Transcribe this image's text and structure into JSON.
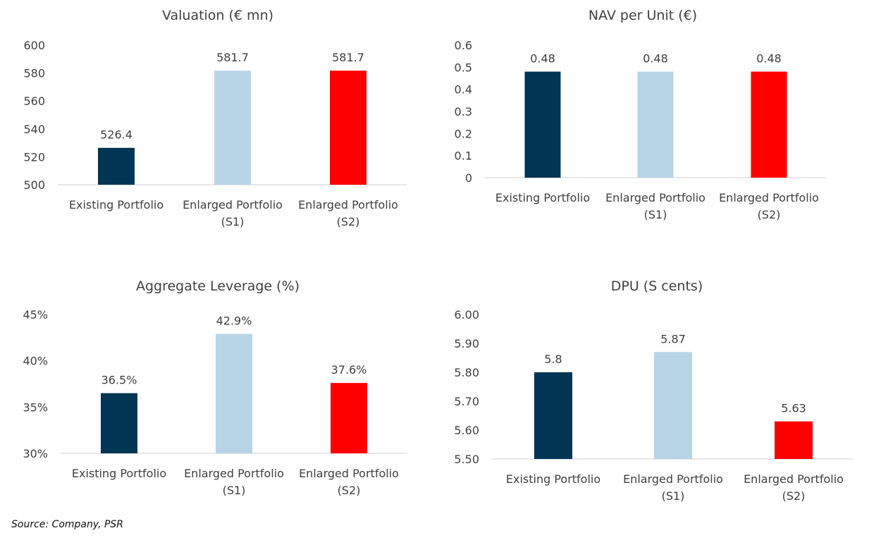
{
  "colors": {
    "existing": "#003553",
    "s1": "#b7d5e6",
    "s2": "#ff0000",
    "axis": "#d9d9d9",
    "text": "#404040"
  },
  "chart_data": [
    {
      "type": "bar",
      "title": "Valuation (€ mn)",
      "categories": [
        [
          "Existing Portfolio"
        ],
        [
          "Enlarged Portfolio",
          "(S1)"
        ],
        [
          "Enlarged Portfolio",
          "(S2)"
        ]
      ],
      "values": [
        526.4,
        581.7,
        581.7
      ],
      "value_labels": [
        "526.4",
        "581.7",
        "581.7"
      ],
      "ylim": [
        500,
        600
      ],
      "yticks": [
        "500",
        "520",
        "540",
        "560",
        "580",
        "600"
      ],
      "ytick_values": [
        500,
        520,
        540,
        560,
        580,
        600
      ],
      "grid": false
    },
    {
      "type": "bar",
      "title": "NAV per Unit (€)",
      "categories": [
        [
          "Existing Portfolio"
        ],
        [
          "Enlarged Portfolio",
          "(S1)"
        ],
        [
          "Enlarged Portfolio",
          "(S2)"
        ]
      ],
      "values": [
        0.48,
        0.48,
        0.48
      ],
      "value_labels": [
        "0.48",
        "0.48",
        "0.48"
      ],
      "ylim": [
        0,
        0.6
      ],
      "yticks": [
        "0",
        "0.1",
        "0.2",
        "0.3",
        "0.4",
        "0.5",
        "0.6"
      ],
      "ytick_values": [
        0,
        0.1,
        0.2,
        0.3,
        0.4,
        0.5,
        0.6
      ],
      "grid": false
    },
    {
      "type": "bar",
      "title": "Aggregate Leverage (%)",
      "categories": [
        [
          "Existing Portfolio"
        ],
        [
          "Enlarged Portfolio",
          "(S1)"
        ],
        [
          "Enlarged Portfolio",
          "(S2)"
        ]
      ],
      "values": [
        36.5,
        42.9,
        37.6
      ],
      "value_labels": [
        "36.5%",
        "42.9%",
        "37.6%"
      ],
      "ylim": [
        30,
        45
      ],
      "yticks": [
        "30%",
        "35%",
        "40%",
        "45%"
      ],
      "ytick_values": [
        30,
        35,
        40,
        45
      ],
      "grid": false
    },
    {
      "type": "bar",
      "title": "DPU (S cents)",
      "categories": [
        [
          "Existing Portfolio"
        ],
        [
          "Enlarged Portfolio",
          "(S1)"
        ],
        [
          "Enlarged Portfolio",
          "(S2)"
        ]
      ],
      "values": [
        5.8,
        5.87,
        5.63
      ],
      "value_labels": [
        "5.8",
        "5.87",
        "5.63"
      ],
      "ylim": [
        5.5,
        6.0
      ],
      "yticks": [
        "5.50",
        "5.60",
        "5.70",
        "5.80",
        "5.90",
        "6.00"
      ],
      "ytick_values": [
        5.5,
        5.6,
        5.7,
        5.8,
        5.9,
        6.0
      ],
      "grid": false
    }
  ],
  "source": "Source: Company, PSR"
}
